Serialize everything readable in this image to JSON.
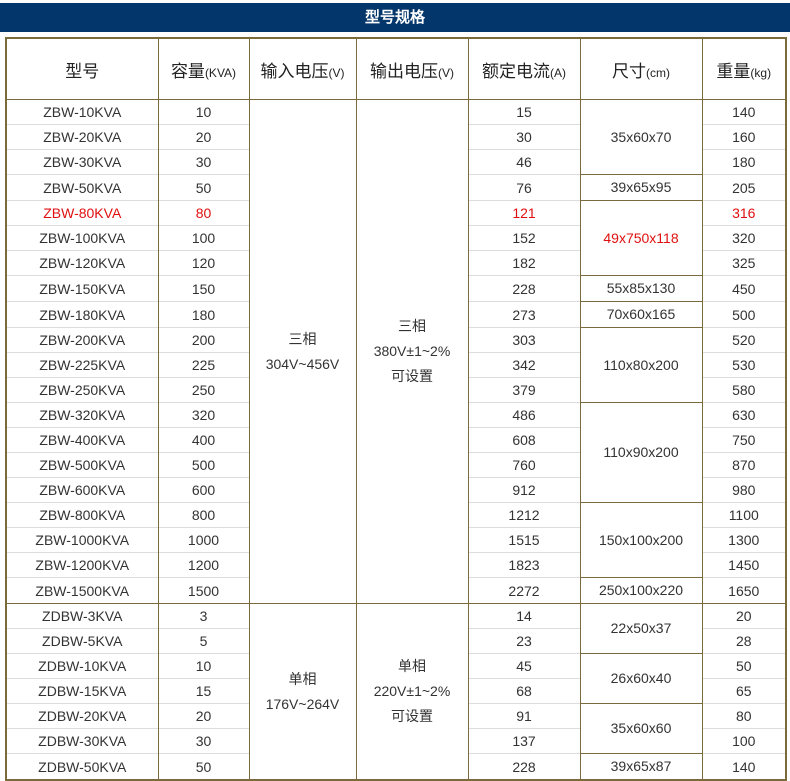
{
  "title": "型号规格",
  "headers": [
    {
      "main": "型号",
      "unit": ""
    },
    {
      "main": "容量",
      "unit": "(KVA)"
    },
    {
      "main": "输入电压",
      "unit": "(V)"
    },
    {
      "main": "输出电压",
      "unit": "(V)"
    },
    {
      "main": "额定电流",
      "unit": "(A)"
    },
    {
      "main": "尺寸",
      "unit": "(cm)"
    },
    {
      "main": "重量",
      "unit": "(kg)"
    }
  ],
  "highlight_color": "#e01010",
  "groups": [
    {
      "input_voltage": [
        "三相",
        "304V~456V"
      ],
      "output_voltage": [
        "三相",
        "380V±1~2%",
        "可设置"
      ],
      "rows": [
        {
          "model": "ZBW-10KVA",
          "capacity": "10",
          "current": "15",
          "weight": "140"
        },
        {
          "model": "ZBW-20KVA",
          "capacity": "20",
          "current": "30",
          "weight": "160"
        },
        {
          "model": "ZBW-30KVA",
          "capacity": "30",
          "current": "46",
          "weight": "180"
        },
        {
          "model": "ZBW-50KVA",
          "capacity": "50",
          "current": "76",
          "weight": "205"
        },
        {
          "model": "ZBW-80KVA",
          "capacity": "80",
          "current": "121",
          "weight": "316",
          "highlight": true
        },
        {
          "model": "ZBW-100KVA",
          "capacity": "100",
          "current": "152",
          "weight": "320"
        },
        {
          "model": "ZBW-120KVA",
          "capacity": "120",
          "current": "182",
          "weight": "325"
        },
        {
          "model": "ZBW-150KVA",
          "capacity": "150",
          "current": "228",
          "weight": "450"
        },
        {
          "model": "ZBW-180KVA",
          "capacity": "180",
          "current": "273",
          "weight": "500"
        },
        {
          "model": "ZBW-200KVA",
          "capacity": "200",
          "current": "303",
          "weight": "520"
        },
        {
          "model": "ZBW-225KVA",
          "capacity": "225",
          "current": "342",
          "weight": "530"
        },
        {
          "model": "ZBW-250KVA",
          "capacity": "250",
          "current": "379",
          "weight": "580"
        },
        {
          "model": "ZBW-320KVA",
          "capacity": "320",
          "current": "486",
          "weight": "630"
        },
        {
          "model": "ZBW-400KVA",
          "capacity": "400",
          "current": "608",
          "weight": "750"
        },
        {
          "model": "ZBW-500KVA",
          "capacity": "500",
          "current": "760",
          "weight": "870"
        },
        {
          "model": "ZBW-600KVA",
          "capacity": "600",
          "current": "912",
          "weight": "980"
        },
        {
          "model": "ZBW-800KVA",
          "capacity": "800",
          "current": "1212",
          "weight": "1100"
        },
        {
          "model": "ZBW-1000KVA",
          "capacity": "1000",
          "current": "1515",
          "weight": "1300"
        },
        {
          "model": "ZBW-1200KVA",
          "capacity": "1200",
          "current": "1823",
          "weight": "1450"
        },
        {
          "model": "ZBW-1500KVA",
          "capacity": "1500",
          "current": "2272",
          "weight": "1650"
        }
      ],
      "sizes": [
        {
          "value": "35x60x70",
          "span": 3
        },
        {
          "value": "39x65x95",
          "span": 1
        },
        {
          "value": "49x750x118",
          "span": 3,
          "highlight": true
        },
        {
          "value": "55x85x130",
          "span": 1
        },
        {
          "value": "70x60x165",
          "span": 1
        },
        {
          "value": "110x80x200",
          "span": 3
        },
        {
          "value": "110x90x200",
          "span": 4
        },
        {
          "value": "150x100x200",
          "span": 3
        },
        {
          "value": "250x100x220",
          "span": 1
        }
      ]
    },
    {
      "input_voltage": [
        "单相",
        "176V~264V"
      ],
      "output_voltage": [
        "单相",
        "220V±1~2%",
        "可设置"
      ],
      "rows": [
        {
          "model": "ZDBW-3KVA",
          "capacity": "3",
          "current": "14",
          "weight": "20"
        },
        {
          "model": "ZDBW-5KVA",
          "capacity": "5",
          "current": "23",
          "weight": "28"
        },
        {
          "model": "ZDBW-10KVA",
          "capacity": "10",
          "current": "45",
          "weight": "50"
        },
        {
          "model": "ZDBW-15KVA",
          "capacity": "15",
          "current": "68",
          "weight": "65"
        },
        {
          "model": "ZDBW-20KVA",
          "capacity": "20",
          "current": "91",
          "weight": "80"
        },
        {
          "model": "ZDBW-30KVA",
          "capacity": "30",
          "current": "137",
          "weight": "100"
        },
        {
          "model": "ZDBW-50KVA",
          "capacity": "50",
          "current": "228",
          "weight": "140"
        }
      ],
      "sizes": [
        {
          "value": "22x50x37",
          "span": 2
        },
        {
          "value": "26x60x40",
          "span": 2
        },
        {
          "value": "35x60x60",
          "span": 2
        },
        {
          "value": "39x65x87",
          "span": 1
        }
      ]
    }
  ]
}
